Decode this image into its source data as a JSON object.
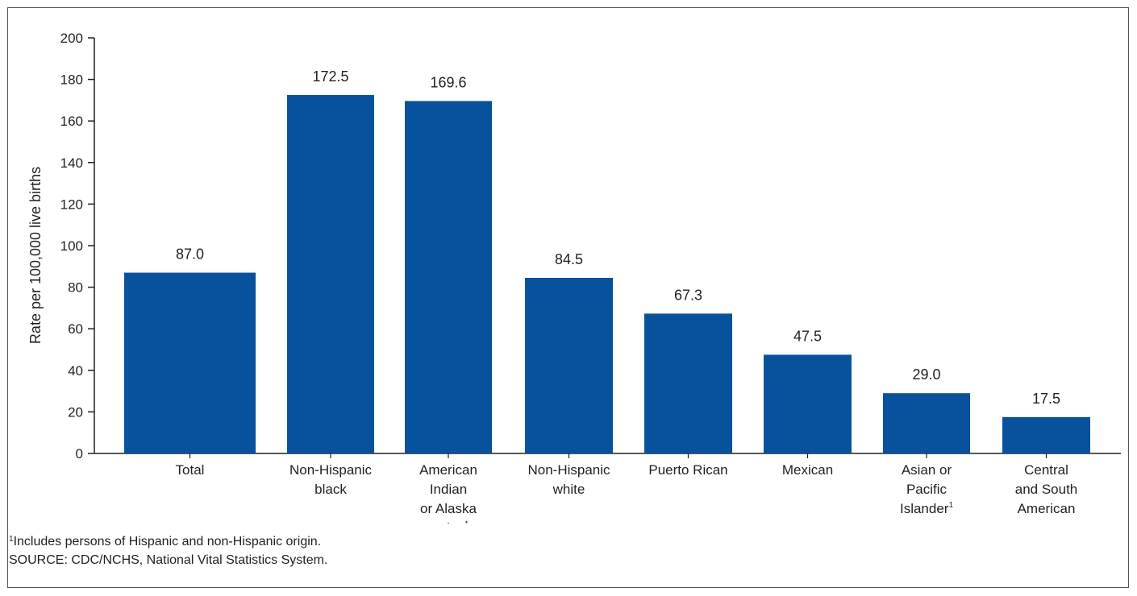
{
  "chart_data": {
    "type": "bar",
    "ylabel": "Rate per 100,000 live births",
    "xlabel": "",
    "ylim": [
      0,
      200
    ],
    "yticks": [
      0,
      20,
      40,
      60,
      80,
      100,
      120,
      140,
      160,
      180,
      200
    ],
    "grid": false,
    "bar_color": "#08519c",
    "categories": [
      {
        "lines": [
          "Total"
        ],
        "footnote": ""
      },
      {
        "lines": [
          "Non-Hispanic",
          "black"
        ],
        "footnote": ""
      },
      {
        "lines": [
          "American",
          "Indian",
          "or Alaska",
          "native"
        ],
        "footnote": "1"
      },
      {
        "lines": [
          "Non-Hispanic",
          "white"
        ],
        "footnote": ""
      },
      {
        "lines": [
          "Puerto Rican"
        ],
        "footnote": ""
      },
      {
        "lines": [
          "Mexican"
        ],
        "footnote": ""
      },
      {
        "lines": [
          "Asian or",
          "Pacific",
          "Islander"
        ],
        "footnote": "1"
      },
      {
        "lines": [
          "Central",
          "and South",
          "American"
        ],
        "footnote": ""
      }
    ],
    "values": [
      87.0,
      172.5,
      169.6,
      84.5,
      67.3,
      47.5,
      29.0,
      17.5
    ],
    "value_labels": [
      "87.0",
      "172.5",
      "169.6",
      "84.5",
      "67.3",
      "47.5",
      "29.0",
      "17.5"
    ]
  },
  "footnotes": {
    "note_marker": "1",
    "note_text": "Includes persons of Hispanic and non-Hispanic origin.",
    "source": "SOURCE: CDC/NCHS, National Vital Statistics System."
  }
}
